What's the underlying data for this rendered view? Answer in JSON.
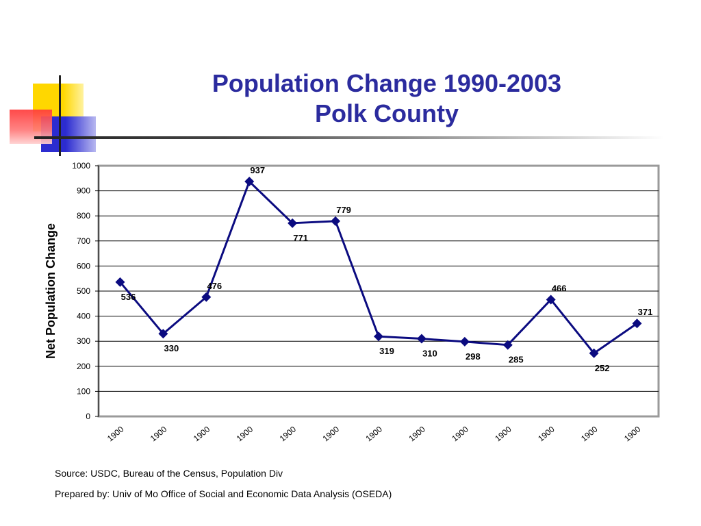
{
  "slide": {
    "title_line1": "Population Change 1990-2003",
    "title_line2": "Polk County",
    "source": "Source: USDC, Bureau of the Census, Population Div",
    "prepared_by": "Prepared by: Univ of Mo Office of Social and Economic Data Analysis (OSEDA)",
    "colors": {
      "title": "#2b2b9e",
      "series": "#0b0b80",
      "deco_yellow": "#ffd700",
      "deco_blue": "#2c2cd0",
      "deco_red": "#ff3a3a"
    }
  },
  "chart_data": {
    "type": "line",
    "title": "",
    "xlabel": "",
    "ylabel": "Net Population Change",
    "categories": [
      "1900",
      "1900",
      "1900",
      "1900",
      "1900",
      "1900",
      "1900",
      "1900",
      "1900",
      "1900",
      "1900",
      "1900",
      "1900"
    ],
    "series": [
      {
        "values": [
          536,
          330,
          476,
          937,
          771,
          779,
          319,
          310,
          298,
          285,
          466,
          252,
          371
        ],
        "marker": "diamond"
      }
    ],
    "ylim": [
      0,
      1000
    ],
    "yticks": [
      0,
      100,
      200,
      300,
      400,
      500,
      600,
      700,
      800,
      900,
      1000
    ],
    "grid": true,
    "legend": "none"
  }
}
